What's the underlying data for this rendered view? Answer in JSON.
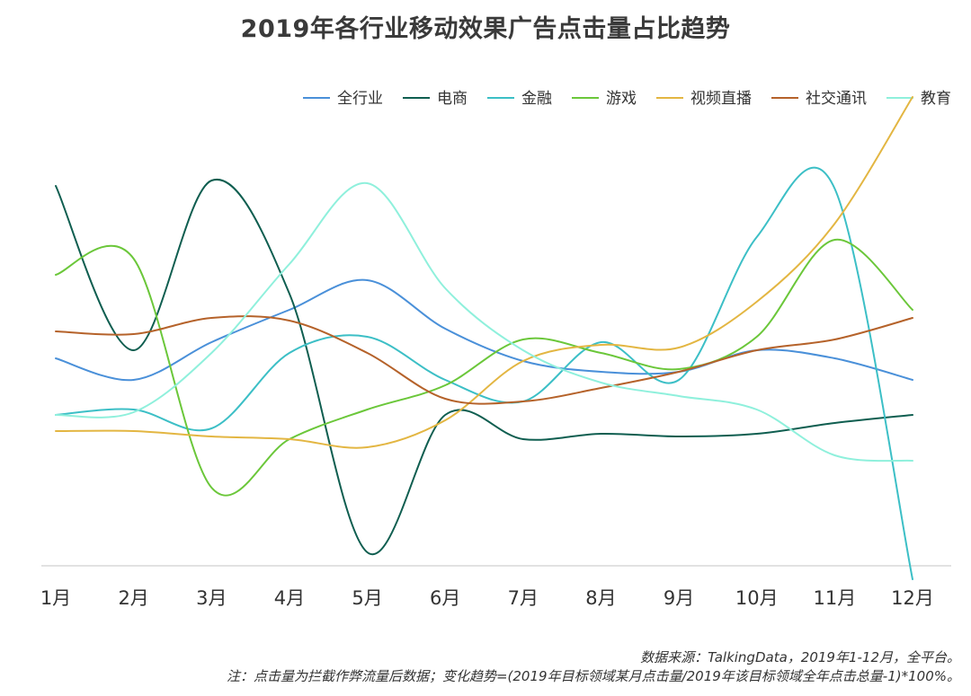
{
  "chart_data": {
    "type": "line",
    "title": "2019年各行业移动效果广告点击量占比趋势",
    "categories": [
      "1月",
      "2月",
      "3月",
      "4月",
      "5月",
      "6月",
      "7月",
      "8月",
      "9月",
      "10月",
      "11月",
      "12月"
    ],
    "legend_position": "top-right",
    "grid": false,
    "ylim": [
      -0.75,
      1.05
    ],
    "series": [
      {
        "name": "全行业",
        "color": "#4a90d9",
        "values": [
          0.02,
          -0.06,
          0.08,
          0.2,
          0.31,
          0.13,
          0.01,
          -0.03,
          -0.03,
          0.05,
          0.02,
          -0.06
        ]
      },
      {
        "name": "电商",
        "color": "#0f5e50",
        "values": [
          0.66,
          0.05,
          0.68,
          0.26,
          -0.7,
          -0.19,
          -0.28,
          -0.26,
          -0.27,
          -0.26,
          -0.22,
          -0.19
        ]
      },
      {
        "name": "金融",
        "color": "#3cbfc6",
        "values": [
          -0.19,
          -0.17,
          -0.24,
          0.04,
          0.1,
          -0.06,
          -0.14,
          0.08,
          -0.06,
          0.47,
          0.65,
          -0.8
        ]
      },
      {
        "name": "游戏",
        "color": "#6bc73a",
        "values": [
          0.33,
          0.39,
          -0.46,
          -0.28,
          -0.17,
          -0.08,
          0.09,
          0.04,
          -0.02,
          0.1,
          0.46,
          0.2
        ]
      },
      {
        "name": "视频直播",
        "color": "#e3b642",
        "values": [
          -0.25,
          -0.25,
          -0.27,
          -0.28,
          -0.31,
          -0.21,
          0.01,
          0.07,
          0.06,
          0.23,
          0.52,
          0.99
        ]
      },
      {
        "name": "社交通讯",
        "color": "#b5622a",
        "values": [
          0.12,
          0.11,
          0.17,
          0.16,
          0.04,
          -0.13,
          -0.14,
          -0.09,
          -0.03,
          0.05,
          0.09,
          0.17
        ]
      },
      {
        "name": "教育",
        "color": "#8ff0dc",
        "values": [
          -0.19,
          -0.18,
          0.04,
          0.37,
          0.67,
          0.28,
          0.05,
          -0.07,
          -0.12,
          -0.17,
          -0.34,
          -0.36
        ]
      }
    ]
  },
  "notes": {
    "source": "数据来源：TalkingData，2019年1-12月，全平台。",
    "footnote": "注：点击量为拦截作弊流量后数据；变化趋势=(2019年目标领域某月点击量/2019年该目标领域全年点击总量-1)*100%。"
  }
}
